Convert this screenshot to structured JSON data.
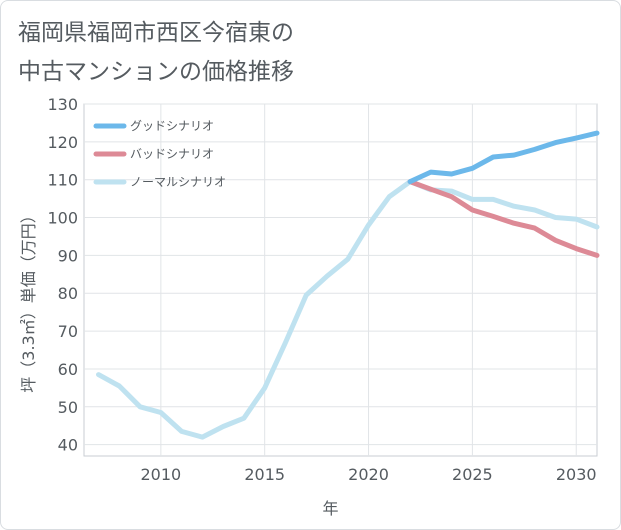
{
  "page": {
    "title_line1": "福岡県福岡市西区今宿東の",
    "title_line2": "中古マンションの価格推移"
  },
  "chart_data": {
    "type": "line",
    "xlabel": "年",
    "ylabel": "坪（3.3㎡）単価（万円）",
    "xlim": [
      2006.3,
      2031
    ],
    "ylim": [
      37,
      130
    ],
    "x_ticks": [
      2010,
      2015,
      2020,
      2025,
      2030
    ],
    "y_ticks": [
      40,
      50,
      60,
      70,
      80,
      90,
      100,
      110,
      120,
      130
    ],
    "grid": true,
    "legend_position": "top-left",
    "series": [
      {
        "name": "グッドシナリオ",
        "color": "#6cb8ea",
        "x": [
          2022,
          2023,
          2024,
          2025,
          2026,
          2027,
          2028,
          2029,
          2030,
          2031
        ],
        "y": [
          109.5,
          112,
          111.5,
          113,
          116,
          116.5,
          118,
          119.8,
          121,
          122.3
        ]
      },
      {
        "name": "バッドシナリオ",
        "color": "#dd8a96",
        "x": [
          2022,
          2023,
          2024,
          2025,
          2026,
          2027,
          2028,
          2029,
          2030,
          2031
        ],
        "y": [
          109.5,
          107.5,
          105.5,
          102,
          100.3,
          98.5,
          97.2,
          94,
          91.8,
          90
        ]
      },
      {
        "name": "ノーマルシナリオ",
        "color": "#bfe2f0",
        "x": [
          2007,
          2008,
          2009,
          2010,
          2011,
          2012,
          2013,
          2014,
          2015,
          2016,
          2017,
          2018,
          2019,
          2020,
          2021,
          2022,
          2023,
          2024,
          2025,
          2026,
          2027,
          2028,
          2029,
          2030,
          2031
        ],
        "y": [
          58.5,
          55.5,
          50,
          48.5,
          43.5,
          42,
          44.8,
          47,
          55,
          67,
          79.5,
          84.5,
          89,
          98,
          105.5,
          109.5,
          107.3,
          107,
          104.8,
          104.8,
          103,
          102,
          100,
          99.6,
          97.5
        ]
      }
    ]
  }
}
